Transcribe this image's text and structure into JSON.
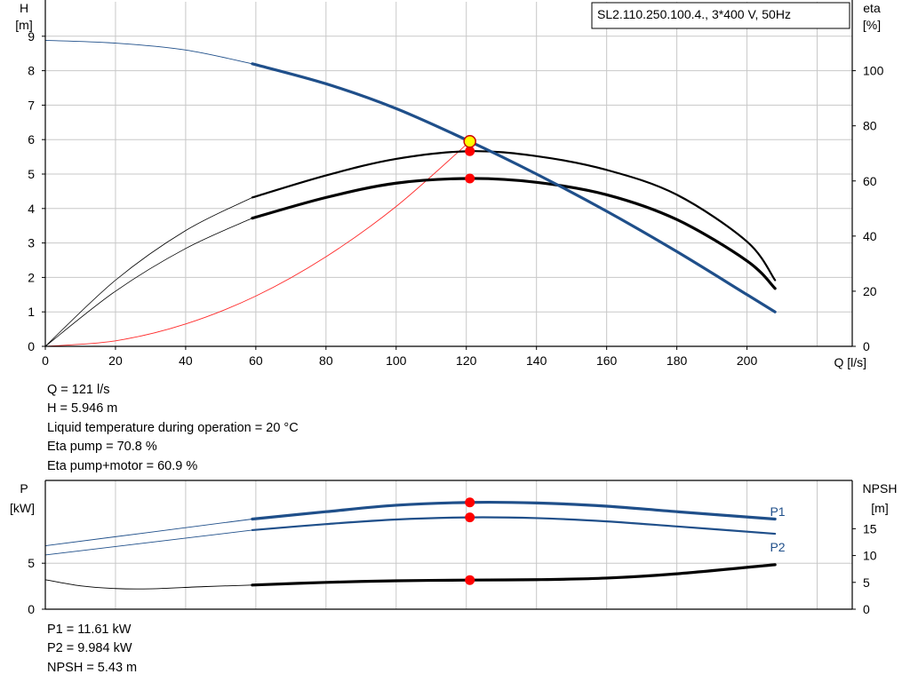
{
  "header": {
    "model": "SL2.110.250.100.4., 3*400 V, 50Hz",
    "h_axis_title": "H",
    "h_axis_unit": "[m]",
    "eta_axis_title": "eta",
    "eta_axis_unit": "[%]",
    "q_axis_title": "Q [l/s]",
    "p_axis_title": "P",
    "p_axis_unit": "[kW]",
    "npsh_axis_title": "NPSH",
    "npsh_axis_unit": "[m]",
    "p1_label": "P1",
    "p2_label": "P2"
  },
  "duty_info": {
    "q": "Q = 121 l/s",
    "h": "H = 5.946 m",
    "temp": "Liquid temperature during operation = 20 °C",
    "eta_pump": "Eta pump = 70.8 %",
    "eta_total": "Eta pump+motor = 60.9 %"
  },
  "power_info": {
    "p1": "P1 = 11.61 kW",
    "p2": "P2 = 9.984 kW",
    "npsh": "NPSH = 5.43 m"
  },
  "colors": {
    "curve_blue": "#1f4f8a",
    "curve_black": "#000000",
    "system_curve": "#ff2a2a",
    "duty_marker": "#ff0000",
    "duty_point_fill": "#ffff00"
  },
  "chart_data": [
    {
      "type": "line",
      "x_ticks": [
        "0",
        "20",
        "40",
        "60",
        "80",
        "100",
        "120",
        "140",
        "160",
        "180",
        "200"
      ],
      "h_ticks": [
        "0",
        "1",
        "2",
        "3",
        "4",
        "5",
        "6",
        "7",
        "8",
        "9"
      ],
      "eta_ticks": [
        "0",
        "20",
        "40",
        "60",
        "80",
        "100"
      ],
      "xlim": [
        0,
        230
      ],
      "ylim": [
        0,
        10
      ],
      "eta_lim": [
        0,
        125
      ],
      "duty_point": {
        "q": 121,
        "h": 5.946
      },
      "series": [
        {
          "id": "head",
          "color": "#1f4f8a",
          "extended": [
            [
              0,
              8.88
            ],
            [
              20,
              8.8
            ],
            [
              40,
              8.6
            ],
            [
              59,
              8.2
            ]
          ],
          "operating": [
            [
              59,
              8.2
            ],
            [
              80,
              7.62
            ],
            [
              100,
              6.9
            ],
            [
              121,
              5.946
            ],
            [
              140,
              5.0
            ],
            [
              160,
              3.92
            ],
            [
              180,
              2.75
            ],
            [
              200,
              1.5
            ],
            [
              208,
              1.0
            ]
          ]
        },
        {
          "id": "eta-pump",
          "color": "#000000",
          "axis": "eta",
          "extended": [
            [
              0,
              0
            ],
            [
              20,
              24
            ],
            [
              40,
              42
            ],
            [
              59,
              54
            ]
          ],
          "operating": [
            [
              59,
              54
            ],
            [
              80,
              62
            ],
            [
              100,
              68
            ],
            [
              121,
              70.8
            ],
            [
              140,
              69
            ],
            [
              160,
              64
            ],
            [
              180,
              55
            ],
            [
              200,
              38
            ],
            [
              208,
              24
            ]
          ],
          "marker": [
            121,
            70.8
          ]
        },
        {
          "id": "eta-total",
          "color": "#000000",
          "axis": "eta",
          "extended": [
            [
              0,
              0
            ],
            [
              20,
              20
            ],
            [
              40,
              35.5
            ],
            [
              59,
              46.5
            ]
          ],
          "operating": [
            [
              59,
              46.5
            ],
            [
              80,
              54
            ],
            [
              100,
              59.2
            ],
            [
              121,
              60.9
            ],
            [
              140,
              59.5
            ],
            [
              160,
              55
            ],
            [
              180,
              46
            ],
            [
              200,
              31
            ],
            [
              208,
              21
            ]
          ],
          "marker": [
            121,
            60.9
          ]
        },
        {
          "id": "system-curve",
          "color": "#ff2a2a",
          "points": [
            [
              0,
              0
            ],
            [
              20,
              0.16
            ],
            [
              40,
              0.65
            ],
            [
              60,
              1.46
            ],
            [
              80,
              2.6
            ],
            [
              100,
              4.06
            ],
            [
              121,
              5.946
            ]
          ]
        }
      ]
    },
    {
      "type": "line",
      "p_ticks": [
        "0",
        "5"
      ],
      "npsh_ticks": [
        "0",
        "5",
        "10",
        "15"
      ],
      "plim": [
        0,
        14
      ],
      "npsh_lim": [
        0,
        24
      ],
      "series": [
        {
          "id": "P1",
          "color": "#1f4f8a",
          "extended": [
            [
              0,
              6.9
            ],
            [
              59,
              9.8
            ]
          ],
          "operating": [
            [
              59,
              9.8
            ],
            [
              80,
              10.6
            ],
            [
              100,
              11.3
            ],
            [
              121,
              11.61
            ],
            [
              140,
              11.55
            ],
            [
              160,
              11.2
            ],
            [
              180,
              10.6
            ],
            [
              208,
              9.8
            ]
          ],
          "marker": [
            121,
            11.61
          ]
        },
        {
          "id": "P2",
          "color": "#1f4f8a",
          "extended": [
            [
              0,
              5.9
            ],
            [
              59,
              8.6
            ]
          ],
          "operating": [
            [
              59,
              8.6
            ],
            [
              80,
              9.25
            ],
            [
              100,
              9.75
            ],
            [
              121,
              9.984
            ],
            [
              140,
              9.9
            ],
            [
              160,
              9.55
            ],
            [
              180,
              9.0
            ],
            [
              208,
              8.2
            ]
          ],
          "marker": [
            121,
            9.984
          ]
        },
        {
          "id": "NPSH",
          "color": "#000000",
          "axis": "npsh",
          "extended": [
            [
              0,
              5.5
            ],
            [
              10,
              4.35
            ],
            [
              20,
              3.85
            ],
            [
              30,
              3.8
            ],
            [
              45,
              4.2
            ],
            [
              59,
              4.5
            ]
          ],
          "operating": [
            [
              59,
              4.5
            ],
            [
              80,
              5.0
            ],
            [
              100,
              5.3
            ],
            [
              121,
              5.43
            ],
            [
              140,
              5.5
            ],
            [
              160,
              5.8
            ],
            [
              180,
              6.6
            ],
            [
              208,
              8.3
            ]
          ],
          "marker": [
            121,
            5.43
          ]
        }
      ]
    }
  ]
}
